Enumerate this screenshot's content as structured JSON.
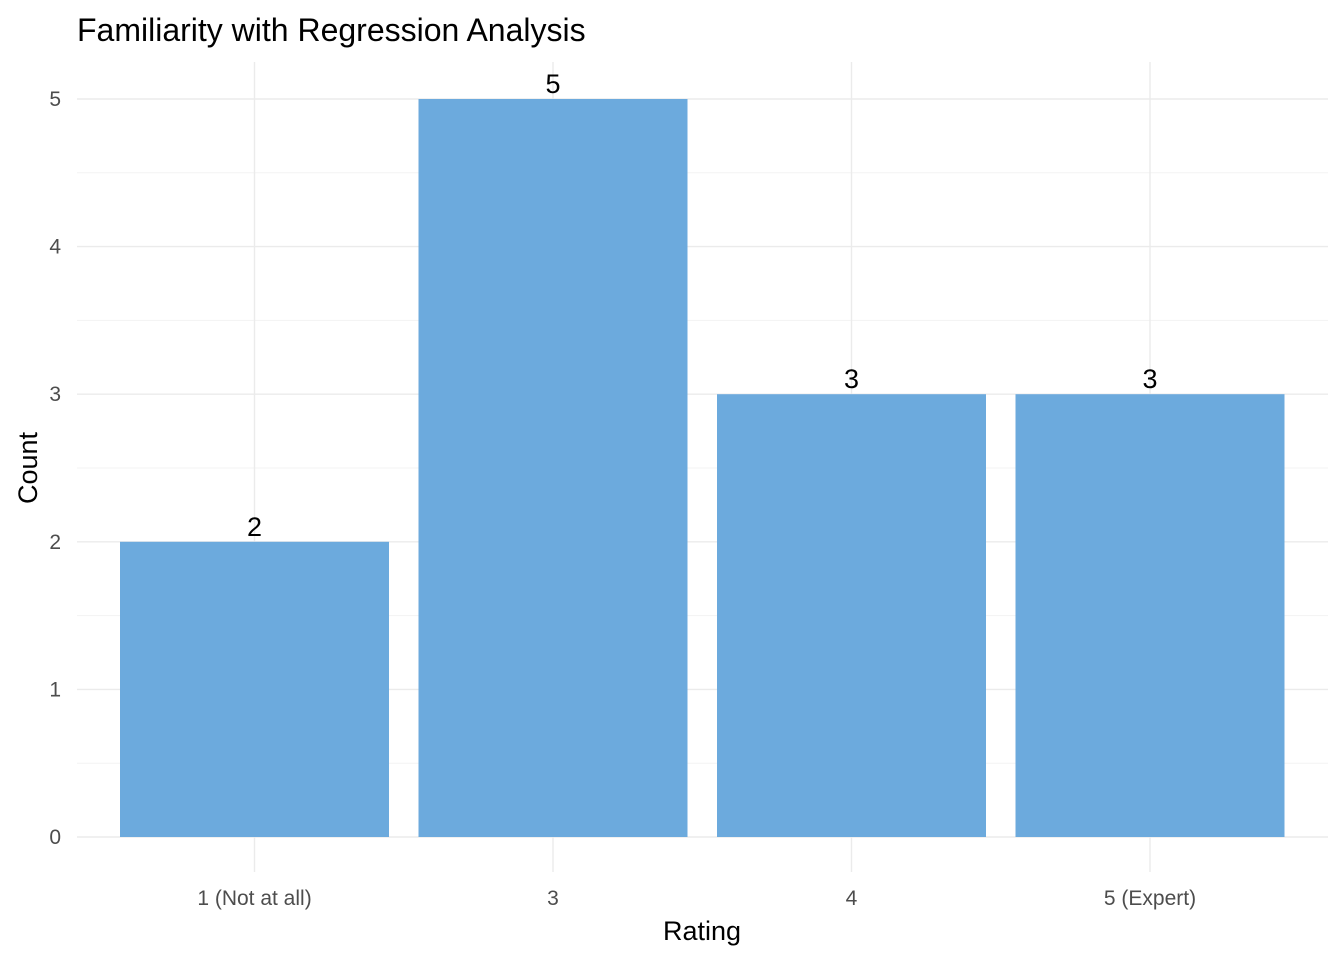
{
  "chart_data": {
    "type": "bar",
    "title": "Familiarity with Regression Analysis",
    "xlabel": "Rating",
    "ylabel": "Count",
    "categories": [
      "1 (Not at all)",
      "3",
      "4",
      "5 (Expert)"
    ],
    "values": [
      2,
      5,
      3,
      3
    ],
    "data_labels": [
      "2",
      "5",
      "3",
      "3"
    ],
    "ylim": [
      0,
      5
    ],
    "yticks": [
      "0",
      "1",
      "2",
      "3",
      "4",
      "5"
    ],
    "grid": true,
    "legend": "none",
    "bar_color": "#6CAADD"
  }
}
